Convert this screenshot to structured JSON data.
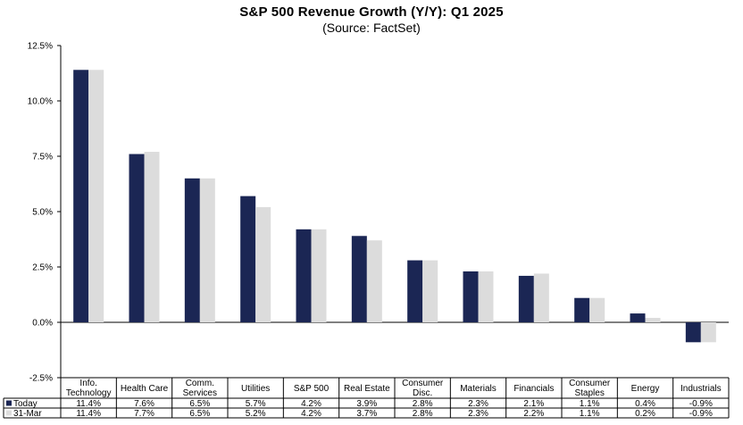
{
  "chart_data": {
    "type": "bar",
    "title": "S&P 500 Revenue Growth (Y/Y):  Q1 2025",
    "subtitle": "(Source: FactSet)",
    "xlabel": "",
    "ylabel": "",
    "ylim": [
      -2.5,
      12.5
    ],
    "yticks": [
      "12.5%",
      "10.0%",
      "7.5%",
      "5.0%",
      "2.5%",
      "0.0%",
      "-2.5%"
    ],
    "ytick_values": [
      12.5,
      10.0,
      7.5,
      5.0,
      2.5,
      0.0,
      -2.5
    ],
    "grid": false,
    "legend": "data-table-left",
    "categories": [
      [
        "Info.",
        "Technology"
      ],
      [
        "Health Care"
      ],
      [
        "Comm.",
        "Services"
      ],
      [
        "Utilities"
      ],
      [
        "S&P 500"
      ],
      [
        "Real Estate"
      ],
      [
        "Consumer",
        "Disc."
      ],
      [
        "Materials"
      ],
      [
        "Financials"
      ],
      [
        "Consumer",
        "Staples"
      ],
      [
        "Energy"
      ],
      [
        "Industrials"
      ]
    ],
    "series": [
      {
        "name": "Today",
        "color": "#1b2654",
        "values": [
          11.4,
          7.6,
          6.5,
          5.7,
          4.2,
          3.9,
          2.8,
          2.3,
          2.1,
          1.1,
          0.4,
          -0.9
        ],
        "labels": [
          "11.4%",
          "7.6%",
          "6.5%",
          "5.7%",
          "4.2%",
          "3.9%",
          "2.8%",
          "2.3%",
          "2.1%",
          "1.1%",
          "0.4%",
          "-0.9%"
        ]
      },
      {
        "name": "31-Mar",
        "color": "#dcdcdc",
        "values": [
          11.4,
          7.7,
          6.5,
          5.2,
          4.2,
          3.7,
          2.8,
          2.3,
          2.2,
          1.1,
          0.2,
          -0.9
        ],
        "labels": [
          "11.4%",
          "7.7%",
          "6.5%",
          "5.2%",
          "4.2%",
          "3.7%",
          "2.8%",
          "2.3%",
          "2.2%",
          "1.1%",
          "0.2%",
          "-0.9%"
        ]
      }
    ]
  }
}
